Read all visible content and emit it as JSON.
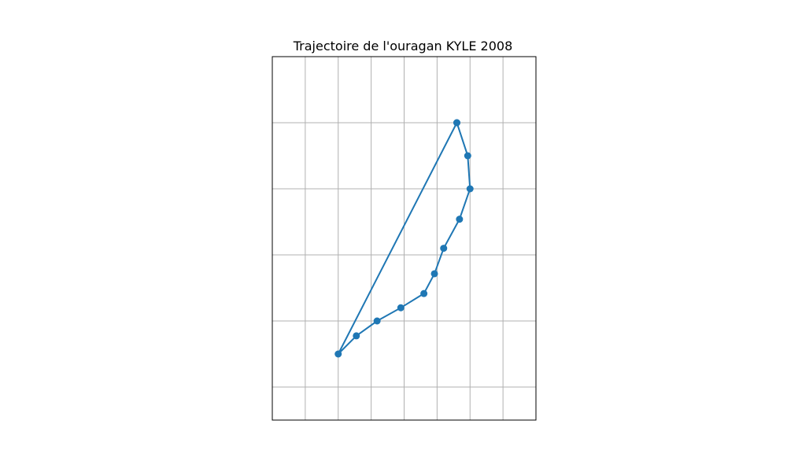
{
  "chart_data": {
    "type": "line",
    "title": "Trajectoire de l'ouragan KYLE 2008",
    "xlabel": "",
    "ylabel": "",
    "grid": true,
    "xlim": [
      -72,
      -64
    ],
    "ylim": [
      21,
      32
    ],
    "x_grid": [
      -71,
      -70,
      -69,
      -68,
      -67,
      -66,
      -65
    ],
    "y_grid": [
      22,
      24,
      26,
      28,
      30
    ],
    "series": [
      {
        "name": "",
        "color": "#1f77b4",
        "points": [
          {
            "lon": -66.4,
            "lat": 30.0
          },
          {
            "lon": -66.07,
            "lat": 29.0
          },
          {
            "lon": -66.0,
            "lat": 28.0
          },
          {
            "lon": -66.32,
            "lat": 27.08
          },
          {
            "lon": -66.8,
            "lat": 26.2
          },
          {
            "lon": -67.08,
            "lat": 25.43
          },
          {
            "lon": -67.4,
            "lat": 24.83
          },
          {
            "lon": -68.1,
            "lat": 24.4
          },
          {
            "lon": -68.82,
            "lat": 24.0
          },
          {
            "lon": -69.45,
            "lat": 23.55
          },
          {
            "lon": -70.0,
            "lat": 23.0
          },
          {
            "lon": -66.4,
            "lat": 30.0
          }
        ]
      }
    ]
  }
}
